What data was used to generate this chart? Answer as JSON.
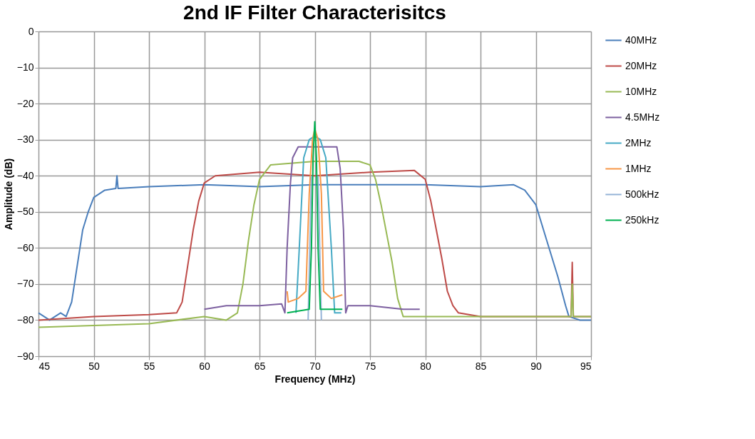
{
  "chart_data": {
    "type": "line",
    "title": "2nd IF Filter Characterisitcs",
    "xlabel": "Frequency (MHz)",
    "ylabel": "Amplitude (dB)",
    "xlim": [
      45,
      95
    ],
    "xticks": [
      45,
      50,
      55,
      60,
      65,
      70,
      75,
      80,
      85,
      90,
      95
    ],
    "ylim": [
      -90,
      0
    ],
    "yticks": [
      -90,
      -80,
      -70,
      -60,
      -50,
      -40,
      -30,
      -20,
      -10,
      0
    ],
    "grid": true,
    "legend": "right",
    "marker": "none",
    "line_style": "solid",
    "series": [
      {
        "name": "40MHz",
        "color": "#4a7ebb",
        "x": [
          45,
          46,
          47,
          47.5,
          48,
          48.5,
          49,
          49.5,
          50,
          51,
          52,
          52.1,
          52.2,
          55,
          60,
          65,
          70,
          75,
          80,
          85,
          88,
          89,
          90,
          91,
          92,
          92.7,
          93,
          94,
          95
        ],
        "values": [
          -78,
          -80,
          -78,
          -79,
          -75,
          -65,
          -55,
          -50,
          -46,
          -44,
          -43.5,
          -40,
          -43.5,
          -43,
          -42.5,
          -43,
          -42.5,
          -42.5,
          -42.5,
          -43,
          -42.5,
          -44,
          -48,
          -58,
          -68,
          -76,
          -79,
          -80,
          -80
        ]
      },
      {
        "name": "20MHz",
        "color": "#be4b48",
        "x": [
          45,
          50,
          55,
          57.5,
          58,
          58.5,
          59,
          59.5,
          60,
          61,
          65,
          70,
          75,
          79,
          80,
          80.5,
          81,
          81.5,
          82,
          82.5,
          83,
          85,
          90,
          93.2,
          93.3,
          93.4,
          95
        ],
        "values": [
          -80,
          -79,
          -78.5,
          -78,
          -75,
          -65,
          -55,
          -47,
          -42,
          -40,
          -39,
          -40,
          -39,
          -38.5,
          -41,
          -47,
          -55,
          -63,
          -72,
          -76,
          -78,
          -79,
          -79,
          -79,
          -64,
          -79,
          -79
        ]
      },
      {
        "name": "10MHz",
        "color": "#98b954",
        "x": [
          45,
          50,
          55,
          60,
          62,
          63,
          63.5,
          64,
          64.5,
          65,
          66,
          70,
          74,
          75,
          75.5,
          76,
          76.5,
          77,
          77.5,
          78,
          80,
          85,
          93.2,
          93.3,
          93.4,
          95
        ],
        "values": [
          -82,
          -81.5,
          -81,
          -79,
          -80,
          -78,
          -70,
          -58,
          -48,
          -41,
          -37,
          -36,
          -36,
          -37,
          -41,
          -48,
          -56,
          -64,
          -74,
          -79,
          -79,
          -79,
          -79,
          -70,
          -79,
          -79
        ]
      },
      {
        "name": "4.5MHz",
        "color": "#7d60a0",
        "x": [
          60,
          62,
          65,
          67,
          67.3,
          67.5,
          67.8,
          68,
          68.5,
          70,
          72,
          72.3,
          72.6,
          72.8,
          73,
          75,
          78,
          79.5
        ],
        "values": [
          -77,
          -76,
          -76,
          -75.5,
          -78,
          -60,
          -42,
          -35,
          -32,
          -32,
          -32,
          -38,
          -55,
          -78,
          -76,
          -76,
          -77,
          -77
        ]
      },
      {
        "name": "2MHz",
        "color": "#46aac5",
        "x": [
          68.3,
          68.6,
          69,
          69.5,
          70,
          70.5,
          71,
          71.5,
          71.8,
          72.4
        ],
        "values": [
          -78,
          -60,
          -35,
          -30,
          -29,
          -30,
          -35,
          -60,
          -78,
          -78
        ]
      },
      {
        "name": "1MHz",
        "color": "#f79646",
        "x": [
          67.5,
          67.6,
          68.5,
          69.2,
          69.5,
          69.8,
          70,
          70.3,
          70.6,
          70.8,
          71.5,
          72.5
        ],
        "values": [
          -72,
          -75,
          -74,
          -72,
          -45,
          -30,
          -27,
          -30,
          -45,
          -72,
          -74,
          -73
        ]
      },
      {
        "name": "500kHz",
        "color": "#95b3d7",
        "x": [
          69.4,
          69.7,
          70,
          70.3,
          70.6
        ],
        "values": [
          -80,
          -40,
          null,
          -40,
          -80
        ]
      },
      {
        "name": "250kHz",
        "color": "#00b050",
        "x": [
          67.5,
          69.5,
          69.7,
          69.85,
          70,
          70.15,
          70.3,
          70.5,
          72.5
        ],
        "values": [
          -78,
          -77,
          -60,
          -35,
          -25,
          -35,
          -60,
          -77,
          -77
        ]
      }
    ]
  }
}
